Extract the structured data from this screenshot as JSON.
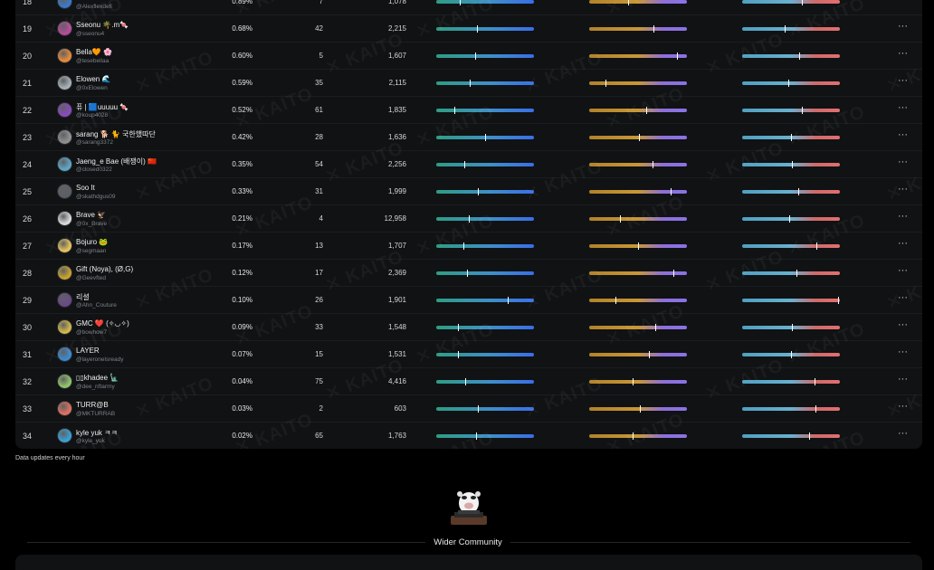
{
  "rows": [
    {
      "rank": "18",
      "name": "",
      "handle": "@Alexflexdefi",
      "pct": "0.89%",
      "n1": "7",
      "n2": "1,078",
      "m1": 0.24,
      "m2": 0.4,
      "m3": 0.62,
      "avatar": "#3a78c9"
    },
    {
      "rank": "19",
      "name": "Sseonu 🌴.m🍬",
      "handle": "@sseonu4",
      "pct": "0.68%",
      "n1": "42",
      "n2": "2,215",
      "m1": 0.42,
      "m2": 0.66,
      "m3": 0.44,
      "avatar": "#b84a9a"
    },
    {
      "rank": "20",
      "name": "Bella🧡 🌸",
      "handle": "@tesebellaa",
      "pct": "0.60%",
      "n1": "5",
      "n2": "1,607",
      "m1": 0.4,
      "m2": 0.91,
      "m3": 0.59,
      "avatar": "#e88a3a"
    },
    {
      "rank": "21",
      "name": "Elowen 🌊",
      "handle": "@0xElowen",
      "pct": "0.59%",
      "n1": "35",
      "n2": "2,115",
      "m1": 0.35,
      "m2": 0.17,
      "m3": 0.48,
      "avatar": "#a7b0b6"
    },
    {
      "rank": "22",
      "name": "퓨 | 🟦uuuuu 🍬",
      "handle": "@koup4028",
      "pct": "0.52%",
      "n1": "61",
      "n2": "1,835",
      "m1": 0.19,
      "m2": 0.59,
      "m3": 0.62,
      "avatar": "#8a4ac0"
    },
    {
      "rank": "23",
      "name": "sarang 🐕 🐈 국한했따단",
      "handle": "@sarang3372",
      "pct": "0.42%",
      "n1": "28",
      "n2": "1,636",
      "m1": 0.5,
      "m2": 0.51,
      "m3": 0.5,
      "avatar": "#8f8f8f"
    },
    {
      "rank": "24",
      "name": "Jaeng_e Bae (배쟁이) 🇨🇳",
      "handle": "@closed0322",
      "pct": "0.35%",
      "n1": "54",
      "n2": "2,256",
      "m1": 0.29,
      "m2": 0.65,
      "m3": 0.51,
      "avatar": "#5ca7c9"
    },
    {
      "rank": "25",
      "name": "Soo It",
      "handle": "@skathdgus09",
      "pct": "0.33%",
      "n1": "31",
      "n2": "1,999",
      "m1": 0.43,
      "m2": 0.84,
      "m3": 0.58,
      "avatar": "#5b5f66"
    },
    {
      "rank": "26",
      "name": "Brave 🦅",
      "handle": "@0x_Brave",
      "pct": "0.21%",
      "n1": "4",
      "n2": "12,958",
      "m1": 0.34,
      "m2": 0.32,
      "m3": 0.49,
      "avatar": "#d9d9d9"
    },
    {
      "rank": "27",
      "name": "Bojuro 🐸",
      "handle": "@segmaan",
      "pct": "0.17%",
      "n1": "13",
      "n2": "1,707",
      "m1": 0.28,
      "m2": 0.5,
      "m3": 0.77,
      "avatar": "#e6c25a"
    },
    {
      "rank": "28",
      "name": "Gift (Noya), (Ø,G)",
      "handle": "@Geevfted",
      "pct": "0.12%",
      "n1": "17",
      "n2": "2,369",
      "m1": 0.32,
      "m2": 0.87,
      "m3": 0.56,
      "avatar": "#c9a22e"
    },
    {
      "rank": "29",
      "name": "리셜",
      "handle": "@Ahn_Couture",
      "pct": "0.10%",
      "n1": "26",
      "n2": "1,901",
      "m1": 0.74,
      "m2": 0.27,
      "m3": 0.99,
      "avatar": "#6a4a8a"
    },
    {
      "rank": "30",
      "name": "GMC ❤️ (✧◡✧)",
      "handle": "@bowhow7",
      "pct": "0.09%",
      "n1": "33",
      "n2": "1,548",
      "m1": 0.22,
      "m2": 0.68,
      "m3": 0.51,
      "avatar": "#d2b84a"
    },
    {
      "rank": "31",
      "name": "LAYER",
      "handle": "@layeronelsready",
      "pct": "0.07%",
      "n1": "15",
      "n2": "1,531",
      "m1": 0.22,
      "m2": 0.62,
      "m3": 0.5,
      "avatar": "#3a8ad0"
    },
    {
      "rank": "32",
      "name": "▯▯khadee 🗽",
      "handle": "@dee_nftarmy",
      "pct": "0.04%",
      "n1": "75",
      "n2": "4,416",
      "m1": 0.3,
      "m2": 0.45,
      "m3": 0.75,
      "avatar": "#8fc46a"
    },
    {
      "rank": "33",
      "name": "TURR@B",
      "handle": "@MKTURRAB",
      "pct": "0.03%",
      "n1": "2",
      "n2": "603",
      "m1": 0.43,
      "m2": 0.52,
      "m3": 0.76,
      "avatar": "#e07060"
    },
    {
      "rank": "34",
      "name": "kyle yuk ㅋㅋ",
      "handle": "@kyle_yuk",
      "pct": "0.02%",
      "n1": "65",
      "n2": "1,763",
      "m1": 0.41,
      "m2": 0.45,
      "m3": 0.69,
      "avatar": "#3aa0d6"
    }
  ],
  "menu_label": "···",
  "watermark": "✕ KAITO",
  "footnote": "Data updates every hour",
  "section_title": "Wider Community",
  "icons": {
    "menu": "more-horizontal-icon",
    "mascot": "mascot-icon"
  }
}
